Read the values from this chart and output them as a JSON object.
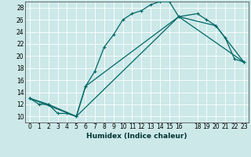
{
  "xlabel": "Humidex (Indice chaleur)",
  "ylabel": "",
  "bg_color": "#cce8e8",
  "grid_color": "#b0d4d4",
  "line_color": "#006666",
  "xlim": [
    -0.5,
    23.5
  ],
  "ylim": [
    9,
    29
  ],
  "yticks": [
    10,
    12,
    14,
    16,
    18,
    20,
    22,
    24,
    26,
    28
  ],
  "xticks": [
    0,
    1,
    2,
    3,
    4,
    5,
    6,
    7,
    8,
    9,
    10,
    11,
    12,
    13,
    14,
    15,
    16,
    18,
    19,
    20,
    21,
    22,
    23
  ],
  "line1_x": [
    0,
    1,
    2,
    3,
    4,
    5,
    6,
    7,
    8,
    9,
    10,
    11,
    12,
    13,
    14,
    15,
    16,
    18,
    19,
    20,
    21,
    22,
    23
  ],
  "line1_y": [
    13,
    12,
    12,
    10.5,
    10.5,
    10,
    15,
    17.5,
    21.5,
    23.5,
    26,
    27,
    27.5,
    28.5,
    29,
    29,
    26.5,
    27,
    26,
    25,
    23,
    19.5,
    19
  ],
  "line2_x": [
    0,
    2,
    5,
    6,
    16,
    20,
    23
  ],
  "line2_y": [
    13,
    12,
    10,
    15,
    26.5,
    25,
    19
  ],
  "line3_x": [
    0,
    5,
    16,
    23
  ],
  "line3_y": [
    13,
    10,
    26.5,
    19
  ]
}
